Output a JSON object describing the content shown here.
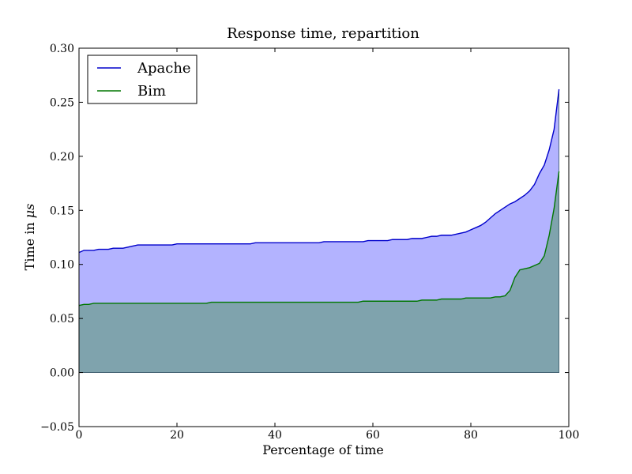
{
  "chart_data": {
    "type": "area",
    "title": "Response time, repartition",
    "xlabel": "Percentage of time",
    "ylabel_prefix": "Time in ",
    "ylabel_unit": "μs",
    "xlim": [
      0,
      100
    ],
    "ylim": [
      -0.05,
      0.3
    ],
    "x_ticks": [
      0,
      20,
      40,
      60,
      80,
      100
    ],
    "x_tick_labels": [
      "0",
      "20",
      "40",
      "60",
      "80",
      "100"
    ],
    "y_ticks": [
      -0.05,
      0.0,
      0.05,
      0.1,
      0.15,
      0.2,
      0.25,
      0.3
    ],
    "y_tick_labels": [
      "−0.05",
      "0.00",
      "0.05",
      "0.10",
      "0.15",
      "0.20",
      "0.25",
      "0.30"
    ],
    "grid": false,
    "legend_position": "top-left",
    "x": [
      0,
      1,
      2,
      3,
      4,
      5,
      6,
      7,
      8,
      9,
      10,
      11,
      12,
      13,
      14,
      15,
      16,
      17,
      18,
      19,
      20,
      21,
      22,
      23,
      24,
      25,
      26,
      27,
      28,
      29,
      30,
      31,
      32,
      33,
      34,
      35,
      36,
      37,
      38,
      39,
      40,
      41,
      42,
      43,
      44,
      45,
      46,
      47,
      48,
      49,
      50,
      51,
      52,
      53,
      54,
      55,
      56,
      57,
      58,
      59,
      60,
      61,
      62,
      63,
      64,
      65,
      66,
      67,
      68,
      69,
      70,
      71,
      72,
      73,
      74,
      75,
      76,
      77,
      78,
      79,
      80,
      81,
      82,
      83,
      84,
      85,
      86,
      87,
      88,
      89,
      90,
      91,
      92,
      93,
      94,
      95,
      96,
      97,
      98
    ],
    "series": [
      {
        "name": "Apache",
        "line_color": "#0000cc",
        "fill_color": "#b3b3ff",
        "values": [
          0.111,
          0.113,
          0.113,
          0.113,
          0.114,
          0.114,
          0.114,
          0.115,
          0.115,
          0.115,
          0.116,
          0.117,
          0.118,
          0.118,
          0.118,
          0.118,
          0.118,
          0.118,
          0.118,
          0.118,
          0.119,
          0.119,
          0.119,
          0.119,
          0.119,
          0.119,
          0.119,
          0.119,
          0.119,
          0.119,
          0.119,
          0.119,
          0.119,
          0.119,
          0.119,
          0.119,
          0.12,
          0.12,
          0.12,
          0.12,
          0.12,
          0.12,
          0.12,
          0.12,
          0.12,
          0.12,
          0.12,
          0.12,
          0.12,
          0.12,
          0.121,
          0.121,
          0.121,
          0.121,
          0.121,
          0.121,
          0.121,
          0.121,
          0.121,
          0.122,
          0.122,
          0.122,
          0.122,
          0.122,
          0.123,
          0.123,
          0.123,
          0.123,
          0.124,
          0.124,
          0.124,
          0.125,
          0.126,
          0.126,
          0.127,
          0.127,
          0.127,
          0.128,
          0.129,
          0.13,
          0.132,
          0.134,
          0.136,
          0.139,
          0.143,
          0.147,
          0.15,
          0.153,
          0.156,
          0.158,
          0.161,
          0.164,
          0.168,
          0.174,
          0.184,
          0.192,
          0.206,
          0.225,
          0.262
        ]
      },
      {
        "name": "Bim",
        "line_color": "#007700",
        "fill_color": "#7fa3ad",
        "values": [
          0.062,
          0.063,
          0.063,
          0.064,
          0.064,
          0.064,
          0.064,
          0.064,
          0.064,
          0.064,
          0.064,
          0.064,
          0.064,
          0.064,
          0.064,
          0.064,
          0.064,
          0.064,
          0.064,
          0.064,
          0.064,
          0.064,
          0.064,
          0.064,
          0.064,
          0.064,
          0.064,
          0.065,
          0.065,
          0.065,
          0.065,
          0.065,
          0.065,
          0.065,
          0.065,
          0.065,
          0.065,
          0.065,
          0.065,
          0.065,
          0.065,
          0.065,
          0.065,
          0.065,
          0.065,
          0.065,
          0.065,
          0.065,
          0.065,
          0.065,
          0.065,
          0.065,
          0.065,
          0.065,
          0.065,
          0.065,
          0.065,
          0.065,
          0.066,
          0.066,
          0.066,
          0.066,
          0.066,
          0.066,
          0.066,
          0.066,
          0.066,
          0.066,
          0.066,
          0.066,
          0.067,
          0.067,
          0.067,
          0.067,
          0.068,
          0.068,
          0.068,
          0.068,
          0.068,
          0.069,
          0.069,
          0.069,
          0.069,
          0.069,
          0.069,
          0.07,
          0.07,
          0.071,
          0.076,
          0.088,
          0.095,
          0.096,
          0.097,
          0.099,
          0.101,
          0.108,
          0.127,
          0.152,
          0.186
        ]
      }
    ]
  }
}
